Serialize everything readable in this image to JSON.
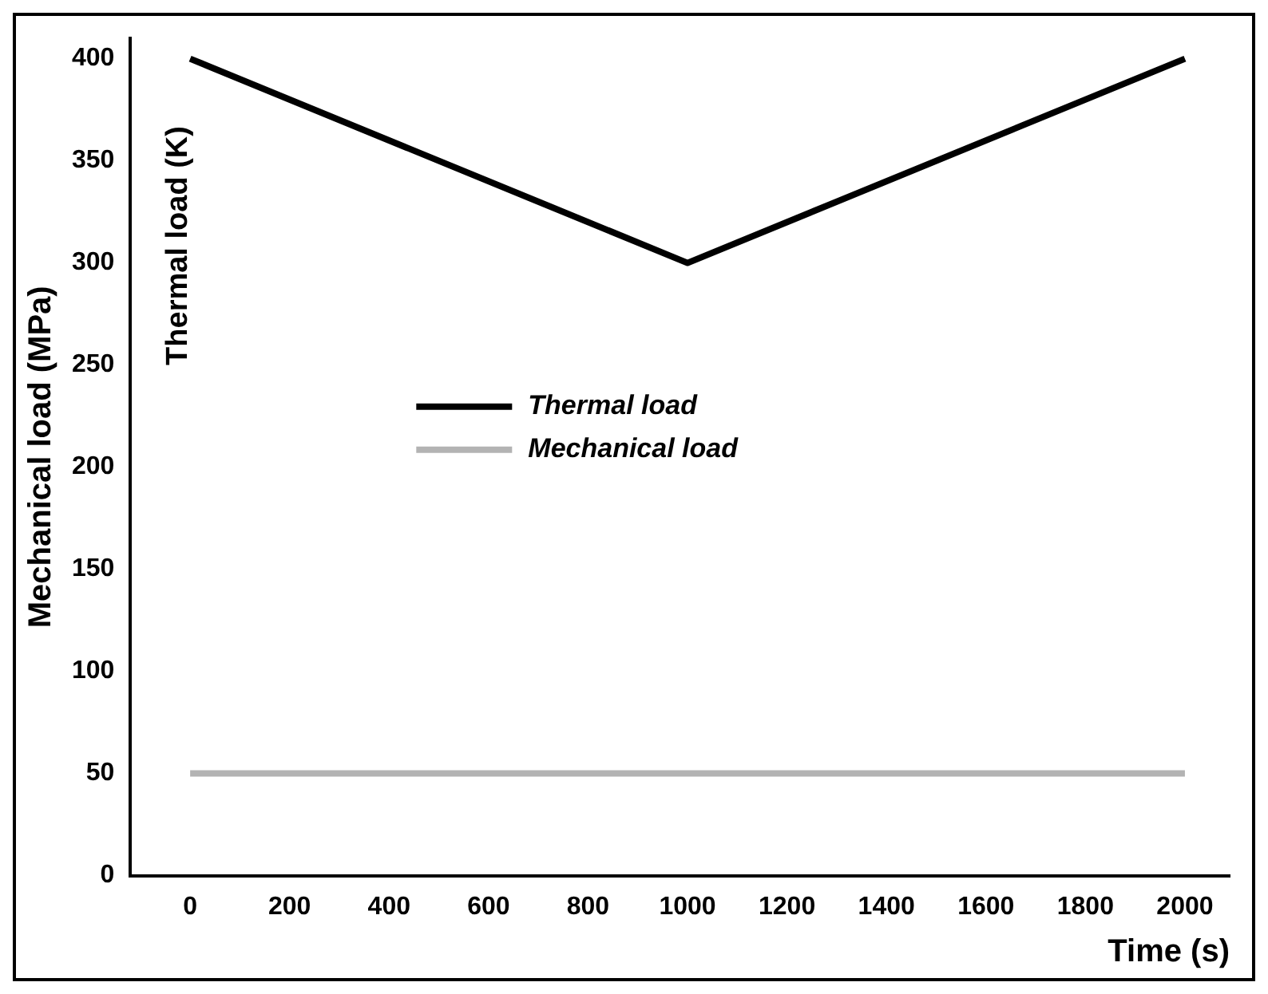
{
  "chart_data": {
    "type": "line",
    "xlabel": "Time (s)",
    "ylabel": "Mechanical load (MPa)",
    "annotations": [
      "Thermal load (K)"
    ],
    "x": [
      0,
      1000,
      2000
    ],
    "series": [
      {
        "name": "Thermal load",
        "color": "#000000",
        "values": [
          400,
          300,
          400
        ]
      },
      {
        "name": "Mechanical load",
        "color": "#b3b3b3",
        "values": [
          50,
          50,
          50
        ]
      }
    ],
    "xlim": [
      -120,
      2090
    ],
    "xticks": [
      0,
      200,
      400,
      600,
      800,
      1000,
      1200,
      1400,
      1600,
      1800,
      2000
    ],
    "ylim": [
      0,
      410
    ],
    "yticks": [
      0,
      50,
      100,
      150,
      200,
      250,
      300,
      350,
      400
    ],
    "grid": false,
    "legend": "center",
    "marker": "none",
    "line_style": "solid"
  }
}
